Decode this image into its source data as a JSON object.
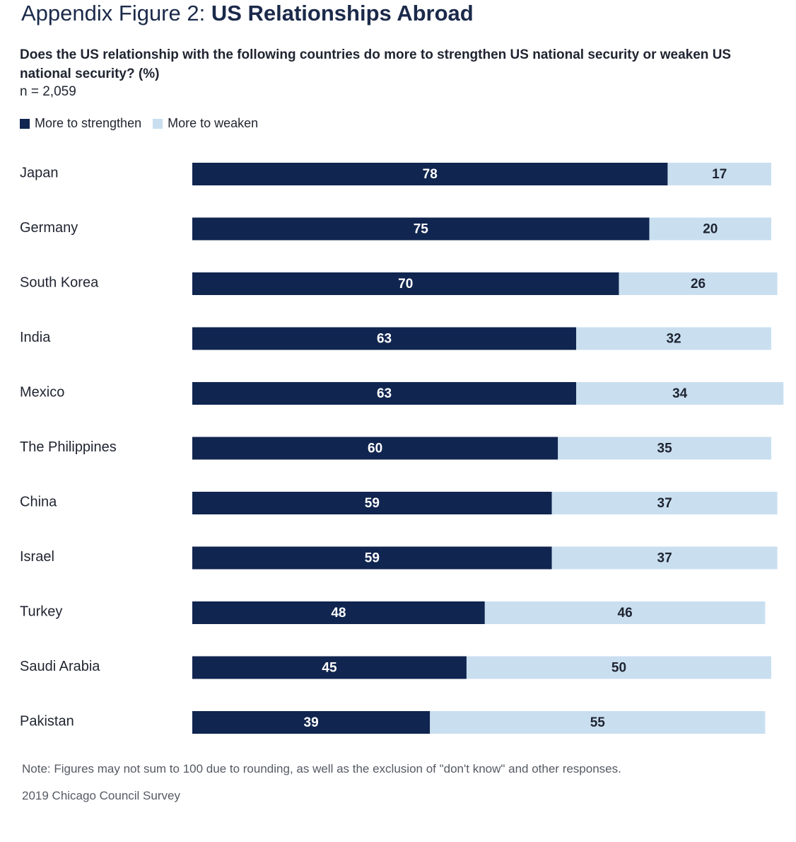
{
  "header": {
    "title_prefix": "Appendix Figure 2: ",
    "title_main": "US Relationships Abroad",
    "subtitle": "Does the US relationship with the following countries do more to strengthen US national security or weaken US national security? (%)",
    "sample": "n = 2,059"
  },
  "colors": {
    "strengthen": "#10254f",
    "weaken": "#c9dff0",
    "strengthen_text": "#ffffff",
    "weaken_text": "#1f2430"
  },
  "footer": {
    "note": "Note: Figures may not sum to 100 due to rounding, as well as the exclusion of \"don't know\" and other responses.",
    "source": "2019 Chicago Council Survey"
  },
  "chart_data": {
    "type": "bar",
    "orientation": "horizontal",
    "stacked": true,
    "title": "US Relationships Abroad",
    "xlabel": "",
    "ylabel": "",
    "xlim": [
      0,
      95
    ],
    "legend_position": "top-left",
    "categories": [
      "Japan",
      "Germany",
      "South Korea",
      "India",
      "Mexico",
      "The Philippines",
      "China",
      "Israel",
      "Turkey",
      "Saudi Arabia",
      "Pakistan"
    ],
    "series": [
      {
        "name": "More to strengthen",
        "values": [
          78,
          75,
          70,
          63,
          63,
          60,
          59,
          59,
          48,
          45,
          39
        ]
      },
      {
        "name": "More to weaken",
        "values": [
          17,
          20,
          26,
          32,
          34,
          35,
          37,
          37,
          46,
          50,
          55
        ]
      }
    ]
  }
}
